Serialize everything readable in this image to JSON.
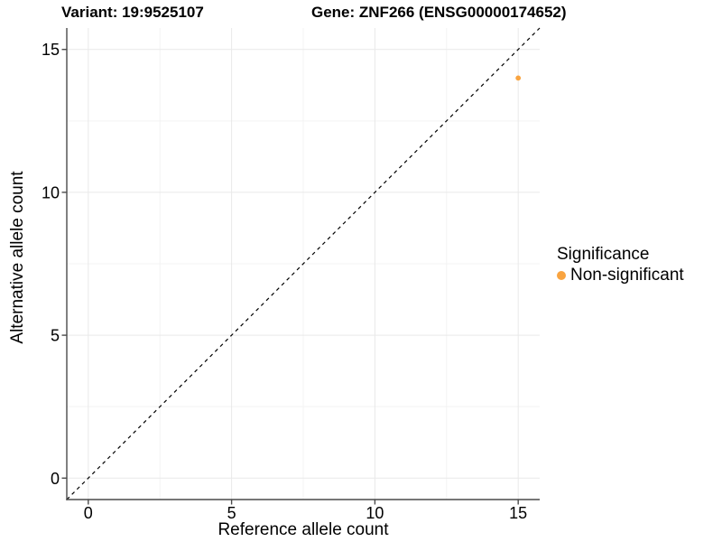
{
  "chart_data": {
    "type": "scatter",
    "title_variant": "Variant: 19:9525107",
    "title_gene": "Gene: ZNF266 (ENSG00000174652)",
    "xlabel": "Reference allele count",
    "ylabel": "Alternative allele count",
    "xlim": [
      -0.75,
      15.75
    ],
    "ylim": [
      -0.75,
      15.75
    ],
    "xticks": [
      0,
      5,
      10,
      15
    ],
    "yticks": [
      0,
      5,
      10,
      15
    ],
    "xminor": [
      2.5,
      7.5,
      12.5
    ],
    "yminor": [
      2.5,
      7.5,
      12.5
    ],
    "grid": "major+minor",
    "identity_line": {
      "style": "dashed",
      "color": "#000000",
      "intercept": 0,
      "slope": 1
    },
    "series": [
      {
        "name": "Non-significant",
        "color": "#F9A440",
        "points": [
          {
            "x": 15,
            "y": 14
          }
        ]
      }
    ],
    "legend": {
      "title": "Significance",
      "position": "right",
      "entries": [
        {
          "label": "Non-significant",
          "color": "#F9A440"
        }
      ]
    }
  },
  "colors": {
    "background": "#FFFFFF",
    "axis_line": "#4A4A4A",
    "grid_major": "#E9E9E9",
    "grid_minor": "#F3F3F3",
    "tick_text": "#000000",
    "point": "#F9A440"
  }
}
